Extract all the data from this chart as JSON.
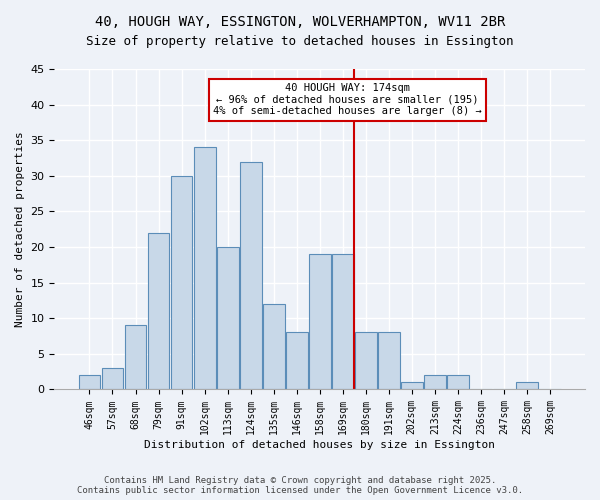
{
  "title_line1": "40, HOUGH WAY, ESSINGTON, WOLVERHAMPTON, WV11 2BR",
  "title_line2": "Size of property relative to detached houses in Essington",
  "xlabel": "Distribution of detached houses by size in Essington",
  "ylabel": "Number of detached properties",
  "bar_labels": [
    "46sqm",
    "57sqm",
    "68sqm",
    "79sqm",
    "91sqm",
    "102sqm",
    "113sqm",
    "124sqm",
    "135sqm",
    "146sqm",
    "158sqm",
    "169sqm",
    "180sqm",
    "191sqm",
    "202sqm",
    "213sqm",
    "224sqm",
    "236sqm",
    "247sqm",
    "258sqm",
    "269sqm"
  ],
  "bar_values": [
    2,
    3,
    9,
    22,
    30,
    34,
    20,
    32,
    12,
    8,
    19,
    19,
    8,
    8,
    1,
    2,
    2,
    0,
    0,
    1,
    0
  ],
  "bar_color": "#c8d8e8",
  "bar_edge_color": "#5b8db8",
  "bg_color": "#eef2f8",
  "grid_color": "#ffffff",
  "annotation_text": "40 HOUGH WAY: 174sqm\n← 96% of detached houses are smaller (195)\n4% of semi-detached houses are larger (8) →",
  "vline_x_index": 11.5,
  "annotation_box_color": "#ffffff",
  "annotation_border_color": "#cc0000",
  "vline_color": "#cc0000",
  "ylim": [
    0,
    45
  ],
  "yticks": [
    0,
    5,
    10,
    15,
    20,
    25,
    30,
    35,
    40,
    45
  ],
  "footer_line1": "Contains HM Land Registry data © Crown copyright and database right 2025.",
  "footer_line2": "Contains public sector information licensed under the Open Government Licence v3.0."
}
